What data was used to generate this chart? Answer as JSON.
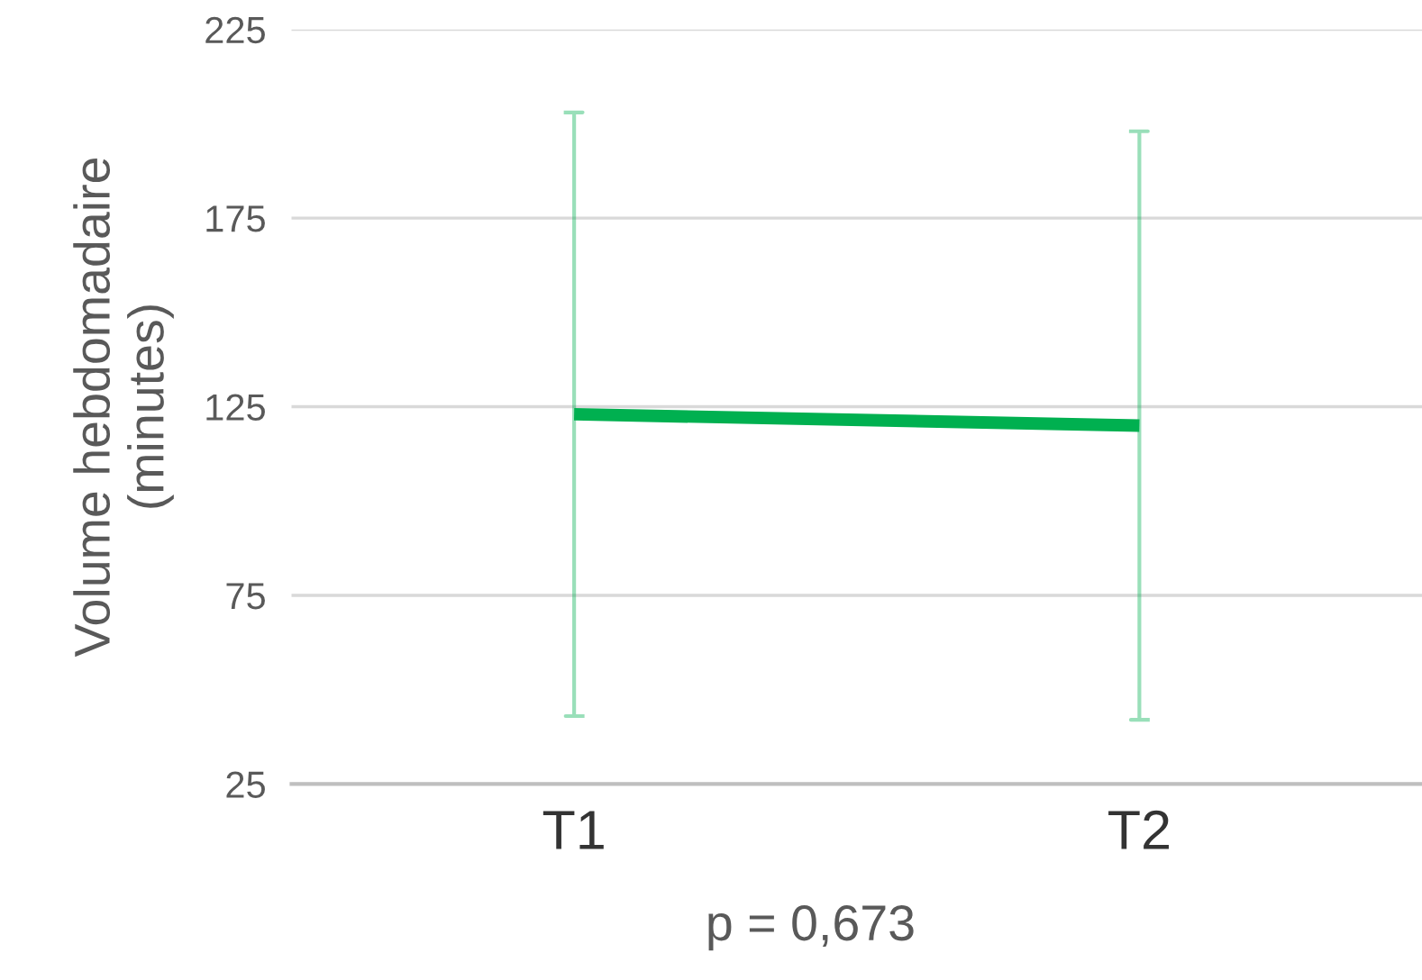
{
  "chart_data": {
    "type": "line",
    "ylabel": "Volume hebdomadaire\n(minutes)",
    "categories": [
      "T1",
      "T2"
    ],
    "values": [
      123,
      120
    ],
    "errors": [
      80,
      78
    ],
    "color": "#00b050",
    "ylim": [
      25,
      225
    ],
    "yticks": [
      25,
      75,
      125,
      175,
      225
    ],
    "grid": "y",
    "marker": "none",
    "line_style": "solid",
    "annotations": [
      "p = 0,673"
    ]
  }
}
